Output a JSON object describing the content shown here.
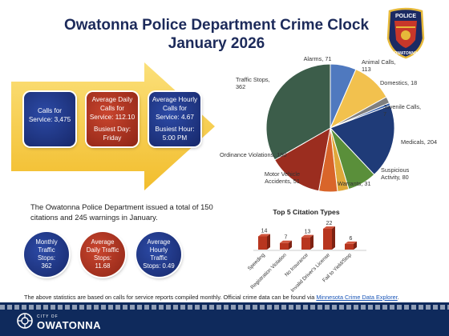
{
  "header": {
    "title_line1": "Owatonna Police Department Crime Clock",
    "title_line2": "January 2026"
  },
  "badge": {
    "top_text": "POLICE",
    "bottom_text": "OWATONNA",
    "icon": "police-badge-icon"
  },
  "summary_boxes": {
    "calls": {
      "line1": "Calls for",
      "line2": "Service: 3,475"
    },
    "daily": {
      "line1": "Average Daily",
      "line2": "Calls for",
      "line3": "Service: 112.10",
      "busy_label": "Busiest Day:",
      "busy_value": "Friday"
    },
    "hourly": {
      "line1": "Average Hourly",
      "line2": "Calls for",
      "line3": "Service: 4.67",
      "busy_label": "Busiest Hour:",
      "busy_value": "5:00 PM"
    }
  },
  "citations_text": "The Owatonna Police Department issued a total of 150 citations and 245 warnings in January.",
  "traffic_circles": {
    "monthly": {
      "line1": "Monthly",
      "line2": "Traffic",
      "line3": "Stops:",
      "line4": "362"
    },
    "daily": {
      "line1": "Average",
      "line2": "Daily Traffic",
      "line3": "Stops:",
      "line4": "11.68"
    },
    "hourly": {
      "line1": "Average",
      "line2": "Hourly",
      "line3": "Traffic",
      "line4": "Stops: 0.49"
    }
  },
  "footnote": {
    "text": "The above statistics are based on calls for service reports compiled monthly.  Official crime data can be found via ",
    "link": "Minnesota Crime Data Explorer",
    "end": "."
  },
  "footer": {
    "city_label": "CITY OF",
    "city_name": "OWATONNA",
    "logo_icon": "city-logo-icon"
  },
  "colors": {
    "navy": "#1c2a5a",
    "red": "#b8361f",
    "yellow": "#f5c842",
    "footer": "#0f2a5c"
  },
  "chart_data": [
    {
      "type": "pie",
      "title": "",
      "slices": [
        {
          "label": "Alarms",
          "value": 71,
          "color": "#4f79bf"
        },
        {
          "label": "Animal Calls",
          "value": 113,
          "color": "#f2c14e"
        },
        {
          "label": "Domestics",
          "value": 18,
          "color": "#7f7f7f"
        },
        {
          "label": "Juvenile Calls",
          "value": 7,
          "color": "#2e5aa8"
        },
        {
          "label": "Medicals",
          "value": 204,
          "color": "#1f3b78"
        },
        {
          "label": "Suspicious Activity",
          "value": 80,
          "color": "#5a8f3a"
        },
        {
          "label": "Warrants",
          "value": 31,
          "color": "#e0a83a"
        },
        {
          "label": "Motor Vehicle Accidents",
          "value": 51,
          "color": "#d9652a"
        },
        {
          "label": "Ordinance Violations",
          "value": 150,
          "color": "#9b2d1f"
        },
        {
          "label": "Traffic Stops",
          "value": 362,
          "color": "#3c5d4a"
        }
      ],
      "labels": {
        "Alarms": [
          "Alarms, 71"
        ],
        "Animal Calls": [
          "Animal Calls,",
          "113"
        ],
        "Domestics": [
          "Domestics, 18"
        ],
        "Juvenile Calls": [
          "Juvenile Calls,",
          "7"
        ],
        "Medicals": [
          "Medicals, 204"
        ],
        "Suspicious Activity": [
          "Suspicious",
          "Activity, 80"
        ],
        "Warrants": [
          "Warrants, 31"
        ],
        "Motor Vehicle Accidents": [
          "Motor Vehicle",
          "Accidents, 51"
        ],
        "Ordinance Violations": [
          "Ordinance Violations, 150"
        ],
        "Traffic Stops": [
          "Traffic Stops,",
          "362"
        ]
      }
    },
    {
      "type": "bar",
      "title": "Top 5 Citation Types",
      "categories": [
        "Speeding",
        "Registration Violation",
        "No Insurance",
        "Invalid Driver's License",
        "Fail to Yield/Stop"
      ],
      "values": [
        14,
        7,
        13,
        22,
        6
      ],
      "color": "#b8361f",
      "ylim": [
        0,
        22
      ]
    }
  ]
}
